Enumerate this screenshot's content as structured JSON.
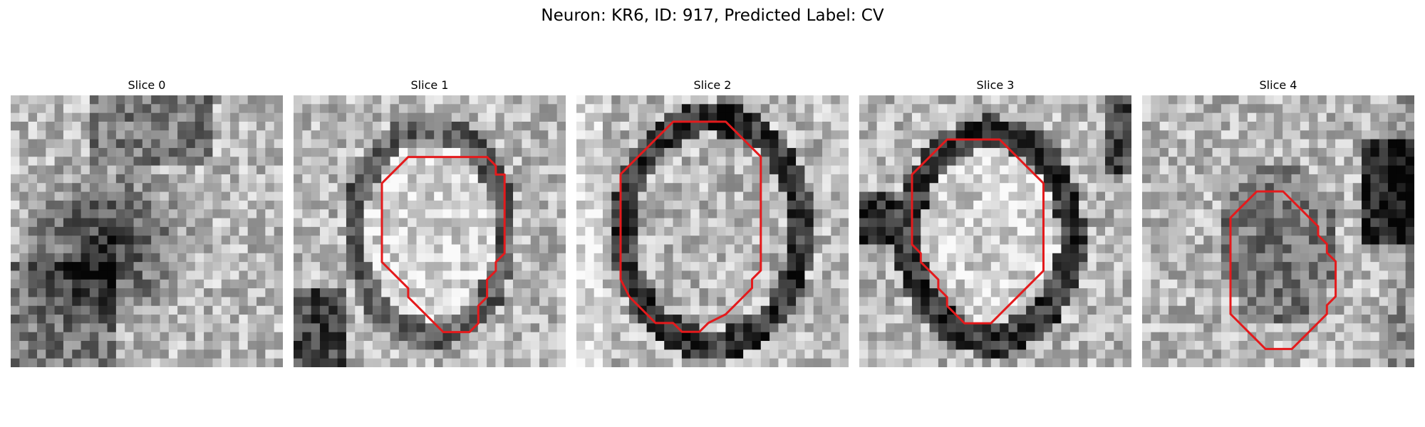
{
  "title": "Neuron: KR6, ID: 917, Predicted Label: CV",
  "outline_color": "#e41a1c",
  "colormap": "grayscale",
  "slices": [
    {
      "label": "Slice 0",
      "contour": []
    },
    {
      "label": "Slice 1",
      "contour": [
        [
          8,
          2
        ],
        [
          12,
          2
        ],
        [
          13,
          3
        ],
        [
          13,
          4
        ],
        [
          14,
          4
        ],
        [
          14,
          5
        ],
        [
          14,
          13
        ],
        [
          13,
          14
        ],
        [
          13,
          15
        ],
        [
          12,
          16
        ],
        [
          12,
          17
        ],
        [
          12,
          18
        ],
        [
          11,
          19
        ],
        [
          11,
          20
        ],
        [
          11,
          21
        ],
        [
          10,
          22
        ],
        [
          8,
          22
        ],
        [
          7,
          22
        ],
        [
          6,
          21
        ],
        [
          5,
          20
        ],
        [
          4,
          19
        ],
        [
          3,
          18
        ],
        [
          3,
          17
        ],
        [
          2,
          16
        ],
        [
          1,
          15
        ],
        [
          0,
          14
        ],
        [
          0,
          9
        ],
        [
          0,
          5
        ],
        [
          1,
          4
        ],
        [
          2,
          3
        ],
        [
          3,
          2
        ]
      ]
    },
    {
      "label": "Slice 2",
      "contour": [
        [
          6,
          0
        ],
        [
          12,
          0
        ],
        [
          13,
          1
        ],
        [
          14,
          2
        ],
        [
          15,
          3
        ],
        [
          16,
          4
        ],
        [
          16,
          17
        ],
        [
          15,
          18
        ],
        [
          15,
          19
        ],
        [
          14,
          20
        ],
        [
          13,
          21
        ],
        [
          12,
          22
        ],
        [
          10,
          23
        ],
        [
          9,
          24
        ],
        [
          7,
          24
        ],
        [
          6,
          23
        ],
        [
          4,
          23
        ],
        [
          3,
          22
        ],
        [
          2,
          21
        ],
        [
          1,
          20
        ],
        [
          0,
          18
        ],
        [
          0,
          6
        ],
        [
          1,
          5
        ],
        [
          2,
          4
        ],
        [
          3,
          3
        ],
        [
          4,
          2
        ],
        [
          5,
          1
        ]
      ]
    },
    {
      "label": "Slice 3",
      "contour": [
        [
          4,
          0
        ],
        [
          10,
          0
        ],
        [
          11,
          1
        ],
        [
          12,
          2
        ],
        [
          13,
          3
        ],
        [
          14,
          4
        ],
        [
          15,
          5
        ],
        [
          15,
          15
        ],
        [
          14,
          16
        ],
        [
          13,
          17
        ],
        [
          12,
          18
        ],
        [
          11,
          19
        ],
        [
          10,
          20
        ],
        [
          9,
          21
        ],
        [
          6,
          21
        ],
        [
          5,
          20
        ],
        [
          4,
          19
        ],
        [
          4,
          18
        ],
        [
          3,
          17
        ],
        [
          3,
          16
        ],
        [
          2,
          15
        ],
        [
          1,
          14
        ],
        [
          1,
          13
        ],
        [
          0,
          12
        ],
        [
          0,
          4
        ],
        [
          1,
          3
        ],
        [
          2,
          2
        ],
        [
          3,
          1
        ]
      ]
    },
    {
      "label": "Slice 4",
      "contour": [
        [
          3,
          0
        ],
        [
          6,
          0
        ],
        [
          7,
          1
        ],
        [
          8,
          2
        ],
        [
          9,
          3
        ],
        [
          10,
          4
        ],
        [
          10,
          5
        ],
        [
          11,
          6
        ],
        [
          11,
          7
        ],
        [
          12,
          8
        ],
        [
          12,
          12
        ],
        [
          11,
          13
        ],
        [
          11,
          14
        ],
        [
          10,
          15
        ],
        [
          9,
          16
        ],
        [
          8,
          17
        ],
        [
          7,
          18
        ],
        [
          4,
          18
        ],
        [
          3,
          17
        ],
        [
          2,
          16
        ],
        [
          1,
          15
        ],
        [
          0,
          14
        ],
        [
          0,
          3
        ],
        [
          1,
          2
        ],
        [
          2,
          1
        ]
      ]
    }
  ]
}
